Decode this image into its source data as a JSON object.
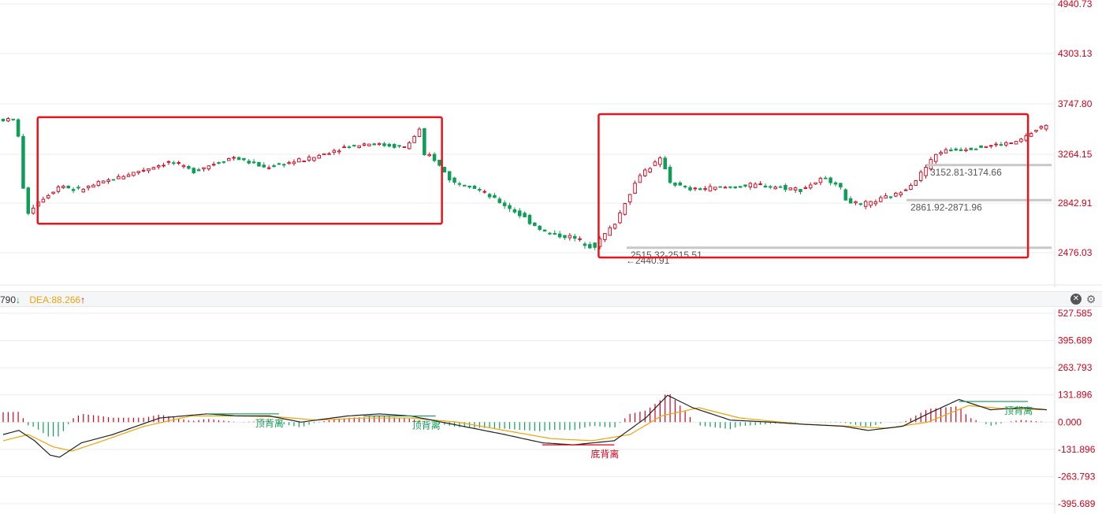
{
  "chart_data": [
    {
      "type": "candlestick",
      "panel": "price",
      "y_ticks": [
        "4940.73",
        "4303.13",
        "3747.80",
        "3264.15",
        "2842.91",
        "2476.03"
      ],
      "ylim": [
        2400,
        4950
      ],
      "colors": {
        "up": "#d0021b",
        "down": "#0f9d58",
        "highlight_box": "#e8141b",
        "zone_line": "#b5b5b5"
      },
      "x_count": 205,
      "anchors": [
        [
          0,
          3600
        ],
        [
          6,
          3590
        ],
        [
          7,
          3230
        ],
        [
          8,
          2960
        ],
        [
          9,
          2760
        ],
        [
          12,
          2840
        ],
        [
          20,
          3000
        ],
        [
          25,
          2950
        ],
        [
          40,
          3080
        ],
        [
          55,
          3200
        ],
        [
          62,
          3120
        ],
        [
          75,
          3240
        ],
        [
          85,
          3150
        ],
        [
          100,
          3230
        ],
        [
          110,
          3330
        ],
        [
          118,
          3370
        ],
        [
          130,
          3330
        ],
        [
          135,
          3520
        ],
        [
          136,
          3240
        ],
        [
          138,
          3260
        ],
        [
          145,
          3020
        ],
        [
          150,
          3010
        ],
        [
          158,
          2880
        ],
        [
          165,
          2780
        ],
        [
          175,
          2620
        ],
        [
          183,
          2590
        ],
        [
          190,
          2520
        ],
        [
          197,
          2700
        ],
        [
          205,
          3100
        ],
        [
          212,
          3230
        ],
        [
          214,
          3030
        ],
        [
          220,
          2960
        ],
        [
          233,
          2980
        ],
        [
          243,
          3000
        ],
        [
          256,
          2960
        ],
        [
          263,
          3050
        ],
        [
          268,
          3020
        ],
        [
          270,
          2880
        ],
        [
          275,
          2820
        ],
        [
          287,
          2920
        ],
        [
          293,
          3050
        ],
        [
          300,
          3290
        ],
        [
          312,
          3330
        ],
        [
          325,
          3380
        ],
        [
          333,
          3530
        ]
      ],
      "x_span": [
        0,
        333
      ],
      "zones": [
        {
          "label": "3152.81-3174.66",
          "low": 3152.81,
          "high": 3174.66
        },
        {
          "label": "2861.92-2871.96",
          "low": 2861.92,
          "high": 2871.96
        },
        {
          "label": "2515.32-2515.51",
          "low": 2515.32,
          "high": 2515.51
        }
      ],
      "low_marker": {
        "label": "←2440.91",
        "value": 2440.91
      },
      "highlight_boxes": [
        {
          "x_from": 11,
          "x_to": 140,
          "y_from": 2690,
          "y_to": 3620
        },
        {
          "x_from": 190,
          "x_to": 327,
          "y_from": 2440,
          "y_to": 3650
        }
      ]
    },
    {
      "type": "macd",
      "panel": "macd",
      "legend": {
        "dif_label": "790",
        "dif_arrow": "↓",
        "dea_label": "DEA:88.266",
        "dea_arrow": "↑"
      },
      "y_ticks": [
        "527.585",
        "395.689",
        "263.793",
        "131.896",
        "0.000",
        "-131.896",
        "-263.793",
        "-395.689"
      ],
      "ylim": [
        -420,
        560
      ],
      "colors": {
        "dif": "#222222",
        "dea": "#f0a30a",
        "hist_up": "#d0021b",
        "hist_down": "#0f9d58",
        "divergence_line": "#0f9d58"
      },
      "dif_anchors": [
        [
          0,
          -60
        ],
        [
          5,
          -40
        ],
        [
          10,
          -90
        ],
        [
          15,
          -160
        ],
        [
          18,
          -170
        ],
        [
          25,
          -100
        ],
        [
          35,
          -60
        ],
        [
          50,
          20
        ],
        [
          65,
          40
        ],
        [
          75,
          30
        ],
        [
          85,
          30
        ],
        [
          95,
          0
        ],
        [
          110,
          30
        ],
        [
          120,
          40
        ],
        [
          130,
          30
        ],
        [
          140,
          0
        ],
        [
          150,
          -30
        ],
        [
          160,
          -60
        ],
        [
          172,
          -100
        ],
        [
          182,
          -110
        ],
        [
          195,
          -90
        ],
        [
          205,
          20
        ],
        [
          212,
          130
        ],
        [
          220,
          70
        ],
        [
          232,
          10
        ],
        [
          245,
          0
        ],
        [
          255,
          -10
        ],
        [
          268,
          -20
        ],
        [
          276,
          -40
        ],
        [
          287,
          -20
        ],
        [
          295,
          40
        ],
        [
          305,
          110
        ],
        [
          315,
          60
        ],
        [
          325,
          70
        ],
        [
          333,
          60
        ]
      ],
      "dea_anchors": [
        [
          0,
          -90
        ],
        [
          8,
          -60
        ],
        [
          16,
          -120
        ],
        [
          22,
          -140
        ],
        [
          30,
          -100
        ],
        [
          45,
          -20
        ],
        [
          60,
          30
        ],
        [
          75,
          30
        ],
        [
          88,
          25
        ],
        [
          100,
          10
        ],
        [
          115,
          20
        ],
        [
          130,
          20
        ],
        [
          145,
          0
        ],
        [
          160,
          -40
        ],
        [
          175,
          -80
        ],
        [
          188,
          -90
        ],
        [
          200,
          -60
        ],
        [
          210,
          30
        ],
        [
          222,
          70
        ],
        [
          235,
          20
        ],
        [
          255,
          -10
        ],
        [
          270,
          -20
        ],
        [
          282,
          -30
        ],
        [
          295,
          0
        ],
        [
          308,
          80
        ],
        [
          320,
          65
        ],
        [
          333,
          60
        ]
      ],
      "divergence": [
        {
          "label": "顶背离",
          "x_from": 65,
          "x_to": 88,
          "y": 40,
          "kind": "top"
        },
        {
          "label": "顶背离",
          "x_from": 115,
          "x_to": 138,
          "y": 30,
          "kind": "top"
        },
        {
          "label": "底背离",
          "x_from": 172,
          "x_to": 195,
          "y": -110,
          "kind": "bottom"
        },
        {
          "label": "顶背离",
          "x_from": 305,
          "x_to": 327,
          "y": 100,
          "kind": "top"
        }
      ]
    }
  ],
  "ui": {
    "close_icon": "close-icon",
    "settings_icon": "gear-icon",
    "close_glyph": "✕",
    "gear_glyph": "⚙"
  }
}
